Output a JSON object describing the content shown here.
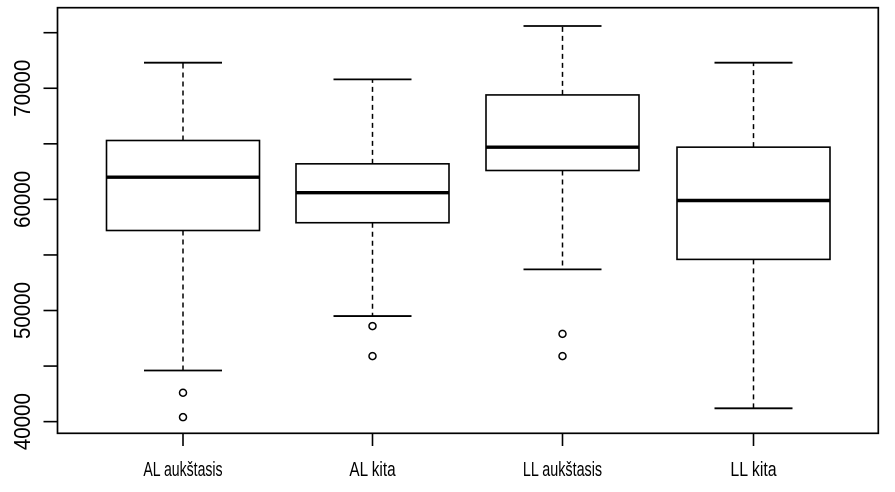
{
  "chart_data": {
    "type": "boxplot",
    "title": "",
    "xlabel": "",
    "ylabel": "",
    "grid": false,
    "legend": null,
    "background_color": "#ffffff",
    "line_color": "#000000",
    "box_fill_color": "#ffffff",
    "categories": [
      "AL aukštasis",
      "AL kita",
      "LL aukštasis",
      "LL kita"
    ],
    "ylim": [
      38950,
      77250
    ],
    "y_axis": {
      "ticks": [
        40000,
        45000,
        50000,
        55000,
        60000,
        65000,
        70000,
        75000
      ],
      "labeled_ticks": [
        40000,
        50000,
        60000,
        70000
      ],
      "tick_label_rotation_deg": -90
    },
    "series": [
      {
        "category": "AL aukštasis",
        "whisker_low": 44600,
        "q1": 57200,
        "median": 62000,
        "q3": 65300,
        "whisker_high": 72300,
        "outliers": [
          42600,
          40400
        ]
      },
      {
        "category": "AL kita",
        "whisker_low": 49500,
        "q1": 57900,
        "median": 60600,
        "q3": 63200,
        "whisker_high": 70800,
        "outliers": [
          48600,
          45900
        ]
      },
      {
        "category": "LL aukštasis",
        "whisker_low": 53700,
        "q1": 62600,
        "median": 64700,
        "q3": 69400,
        "whisker_high": 75600,
        "outliers": [
          47900,
          45900
        ]
      },
      {
        "category": "LL kita",
        "whisker_low": 41200,
        "q1": 54600,
        "median": 59900,
        "q3": 64700,
        "whisker_high": 72300,
        "outliers": []
      }
    ]
  }
}
